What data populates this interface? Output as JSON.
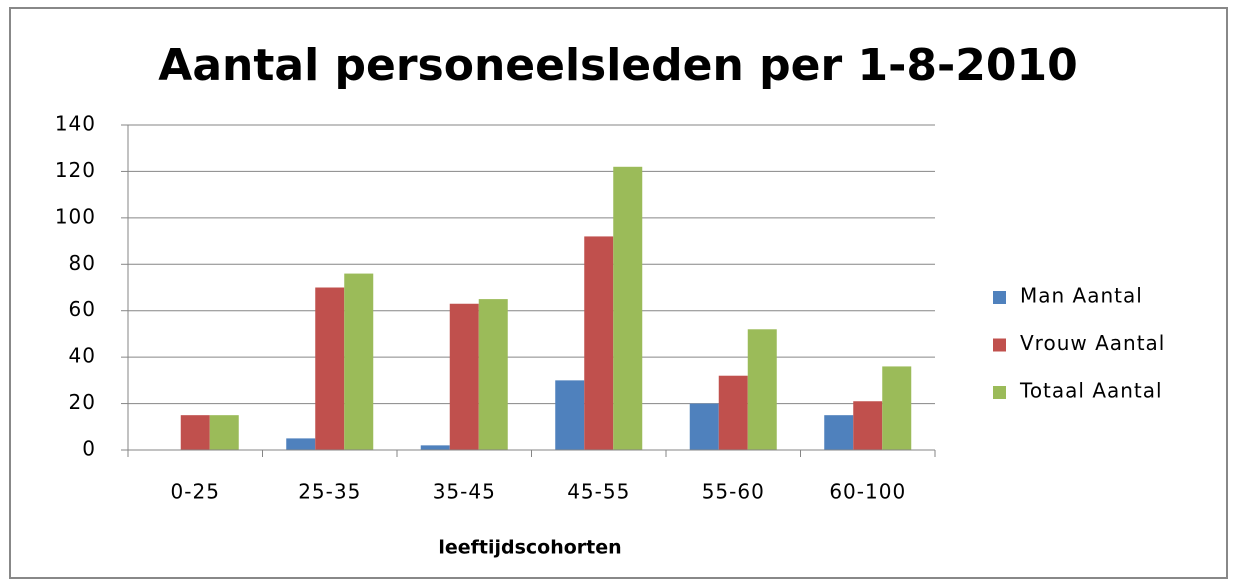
{
  "chart_data": {
    "type": "bar",
    "title": "Aantal personeelsleden per 1-8-2010",
    "x_label": "leeftijdscohorten",
    "categories": [
      "0-25",
      "25-35",
      "35-45",
      "45-55",
      "55-60",
      "60-100"
    ],
    "series": [
      {
        "name": "Man Aantal",
        "color": "#4f81bd",
        "values": [
          0,
          5,
          2,
          30,
          20,
          15
        ]
      },
      {
        "name": "Vrouw Aantal",
        "color": "#c0504d",
        "values": [
          15,
          70,
          63,
          92,
          32,
          21
        ]
      },
      {
        "name": "Totaal Aantal",
        "color": "#9bbb59",
        "values": [
          15,
          76,
          65,
          122,
          52,
          36
        ]
      }
    ],
    "ylim": [
      0,
      140
    ],
    "yticks": [
      0,
      20,
      40,
      60,
      80,
      100,
      120,
      140
    ],
    "grid": true,
    "legend": "right"
  }
}
